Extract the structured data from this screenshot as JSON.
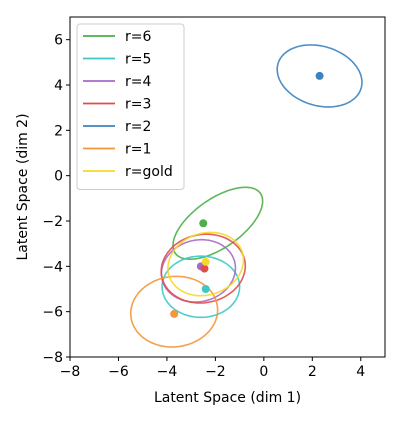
{
  "chart_data": {
    "type": "scatter",
    "title": "",
    "xlabel": "Latent Space (dim 1)",
    "ylabel": "Latent Space (dim 2)",
    "xlim": [
      -8,
      5
    ],
    "ylim": [
      -8,
      7
    ],
    "xticks": [
      -8,
      -6,
      -4,
      -2,
      0,
      2,
      4
    ],
    "yticks": [
      -8,
      -6,
      -4,
      -2,
      0,
      2,
      4,
      6
    ],
    "grid": false,
    "legend_position": "top-left",
    "series": [
      {
        "name": "r=6",
        "color": "#4daf4a",
        "point": [
          -2.5,
          -2.1
        ],
        "ellipse": {
          "cx": -1.9,
          "cy": -2.1,
          "rx": 2.2,
          "ry": 1.05,
          "angle": 38
        }
      },
      {
        "name": "r=5",
        "color": "#3ec8c8",
        "point": [
          -2.4,
          -5.0
        ],
        "ellipse": {
          "cx": -2.6,
          "cy": -4.9,
          "rx": 1.6,
          "ry": 1.35,
          "angle": 0
        }
      },
      {
        "name": "r=4",
        "color": "#a86ac9",
        "point": [
          -2.6,
          -4.0
        ],
        "ellipse": {
          "cx": -2.7,
          "cy": -4.2,
          "rx": 1.55,
          "ry": 1.35,
          "angle": 20
        }
      },
      {
        "name": "r=3",
        "color": "#e04b4b",
        "point": [
          -2.45,
          -4.1
        ],
        "ellipse": {
          "cx": -2.5,
          "cy": -4.1,
          "rx": 1.75,
          "ry": 1.5,
          "angle": 15
        }
      },
      {
        "name": "r=2",
        "color": "#3b83c0",
        "point": [
          2.3,
          4.4
        ],
        "ellipse": {
          "cx": 2.3,
          "cy": 4.4,
          "rx": 1.8,
          "ry": 1.3,
          "angle": -20
        }
      },
      {
        "name": "r=1",
        "color": "#f2973b",
        "point": [
          -3.7,
          -6.1
        ],
        "ellipse": {
          "cx": -3.7,
          "cy": -6.0,
          "rx": 1.8,
          "ry": 1.55,
          "angle": 10
        }
      },
      {
        "name": "r=gold",
        "color": "#f5d928",
        "point": [
          -2.4,
          -3.8
        ],
        "ellipse": {
          "cx": -2.4,
          "cy": -3.9,
          "rx": 1.6,
          "ry": 1.35,
          "angle": 25
        }
      }
    ]
  }
}
